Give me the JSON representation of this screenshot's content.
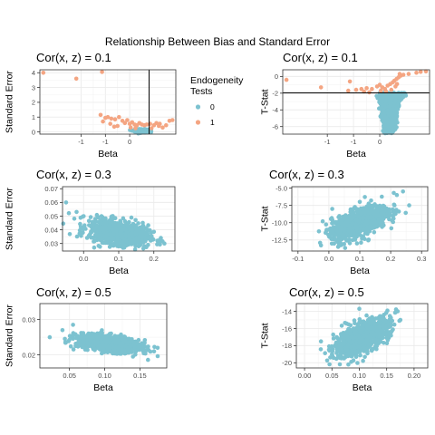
{
  "figure": {
    "title": "Relationship Between Bias and Standard Error"
  },
  "legend": {
    "title_line1": "Endogeneity",
    "title_line2": "Tests",
    "entries": [
      {
        "label": "0",
        "color": "#7cc2d0"
      },
      {
        "label": "1",
        "color": "#f4a582"
      }
    ]
  },
  "colors": {
    "group0": "#7cc2d0",
    "group1": "#f4a582",
    "grid": "#ebebeb",
    "panel_border": "#333333"
  },
  "chart_data": [
    {
      "type": "scatter",
      "title": "Cor(x, z) = 0.1",
      "xlabel": "Beta",
      "ylabel": "Standard Error",
      "xlim": [
        -1.85,
        0.95
      ],
      "ylim": [
        -0.15,
        4.2
      ],
      "xticks": [
        -1,
        -0.5,
        0
      ],
      "xtick_labels": [
        "-1",
        "-0.5",
        "0"
      ],
      "xticks_shown": [
        -1,
        -0.5,
        0
      ],
      "xtick_text": [
        "-1",
        "-1",
        "0"
      ],
      "yticks": [
        0,
        1,
        2,
        3,
        4
      ],
      "ytick_labels": [
        "0",
        "1",
        "2",
        "3",
        "4"
      ],
      "vline": 0.4,
      "grid": true,
      "series": [
        {
          "name": "0",
          "cloud": {
            "cx": 0.25,
            "cy": 0.07,
            "sx": 0.07,
            "sy": 0.05,
            "n": 300,
            "corr": 0
          }
        },
        {
          "name": "1",
          "points": [
            [
              -1.78,
              4.0
            ],
            [
              -1.1,
              3.6
            ],
            [
              -0.57,
              4.05
            ],
            [
              -0.6,
              1.15
            ],
            [
              -0.5,
              0.95
            ],
            [
              -0.45,
              1.0
            ],
            [
              -0.38,
              0.9
            ],
            [
              -0.3,
              0.85
            ],
            [
              -0.22,
              1.0
            ],
            [
              -0.15,
              0.75
            ],
            [
              -0.1,
              0.6
            ],
            [
              -0.05,
              0.8
            ],
            [
              0.0,
              0.55
            ],
            [
              0.05,
              0.65
            ],
            [
              0.1,
              0.5
            ],
            [
              0.15,
              0.45
            ],
            [
              0.2,
              0.6
            ],
            [
              0.25,
              0.5
            ],
            [
              0.3,
              0.45
            ],
            [
              0.35,
              0.5
            ],
            [
              0.42,
              0.55
            ],
            [
              0.5,
              0.45
            ],
            [
              0.55,
              0.6
            ],
            [
              0.6,
              0.4
            ],
            [
              0.68,
              0.3
            ],
            [
              0.75,
              0.45
            ],
            [
              0.82,
              0.75
            ],
            [
              0.88,
              0.8
            ],
            [
              -0.55,
              0.7
            ],
            [
              -0.4,
              0.55
            ],
            [
              -0.25,
              0.4
            ],
            [
              0.02,
              0.3
            ],
            [
              0.12,
              0.25
            ],
            [
              0.45,
              0.25
            ],
            [
              0.62,
              0.55
            ],
            [
              -0.32,
              0.35
            ]
          ]
        }
      ]
    },
    {
      "type": "scatter",
      "title": "Cor(x, z) = 0.1",
      "xlabel": "Beta",
      "ylabel": "T-Stat",
      "xlim": [
        -1.85,
        0.95
      ],
      "ylim": [
        -6.9,
        0.8
      ],
      "xticks": [
        -1,
        -0.5,
        0
      ],
      "xtick_text": [
        "-1",
        "-1",
        "0"
      ],
      "yticks": [
        0,
        -2,
        -4,
        -6
      ],
      "ytick_labels": [
        "0",
        "-2",
        "-4",
        "-6"
      ],
      "hline": -1.96,
      "grid": true,
      "series": [
        {
          "name": "0",
          "funnel": true
        },
        {
          "name": "1",
          "points": [
            [
              -1.78,
              -0.4
            ],
            [
              -1.12,
              -1.3
            ],
            [
              -0.57,
              -0.6
            ],
            [
              -0.6,
              -1.7
            ],
            [
              -0.45,
              -1.6
            ],
            [
              -0.35,
              -1.5
            ],
            [
              -0.25,
              -1.4
            ],
            [
              -0.15,
              -1.5
            ],
            [
              -0.05,
              -1.2
            ],
            [
              0.0,
              -1.0
            ],
            [
              0.05,
              -1.3
            ],
            [
              0.1,
              -1.5
            ],
            [
              0.15,
              -1.1
            ],
            [
              0.2,
              -0.9
            ],
            [
              0.25,
              -0.7
            ],
            [
              0.28,
              -0.5
            ],
            [
              0.32,
              -0.3
            ],
            [
              0.36,
              -0.1
            ],
            [
              0.38,
              0.3
            ],
            [
              0.4,
              0.1
            ],
            [
              0.45,
              0.2
            ],
            [
              0.55,
              0.3
            ],
            [
              0.7,
              0.45
            ],
            [
              0.78,
              0.55
            ],
            [
              0.88,
              0.6
            ],
            [
              -0.3,
              -1.8
            ],
            [
              -0.2,
              -1.9
            ],
            [
              0.02,
              -1.7
            ],
            [
              0.12,
              -1.8
            ],
            [
              0.22,
              -1.6
            ],
            [
              0.3,
              -1.2
            ],
            [
              0.33,
              -0.9
            ]
          ]
        }
      ]
    },
    {
      "type": "scatter",
      "title": "Cor(x, z) = 0.3",
      "xlabel": "Beta",
      "ylabel": "Standard Error",
      "xlim": [
        -0.06,
        0.26
      ],
      "ylim": [
        0.0245,
        0.0715
      ],
      "xticks": [
        0.0,
        0.1,
        0.2
      ],
      "xtick_labels": [
        "0.0",
        "0.1",
        "0.2"
      ],
      "yticks": [
        0.03,
        0.04,
        0.05,
        0.06,
        0.07
      ],
      "ytick_labels": [
        "0.03",
        "0.04",
        "0.05",
        "0.06",
        "0.07"
      ],
      "grid": true,
      "series": [
        {
          "name": "0",
          "cloud": {
            "cx": 0.1,
            "cy": 0.038,
            "sx": 0.042,
            "sy": 0.0045,
            "n": 900,
            "corr": -0.35
          },
          "extra": [
            [
              -0.05,
              0.06
            ],
            [
              -0.02,
              0.053
            ],
            [
              0.0,
              0.05
            ],
            [
              0.22,
              0.034
            ],
            [
              0.23,
              0.03
            ],
            [
              0.03,
              0.027
            ]
          ]
        }
      ]
    },
    {
      "type": "scatter",
      "title": "Cor(x, z) = 0.3",
      "xlabel": "Beta",
      "ylabel": "T-Stat",
      "xlim": [
        -0.12,
        0.32
      ],
      "ylim": [
        -14.1,
        -4.8
      ],
      "xticks": [
        -0.1,
        0.0,
        0.1,
        0.2,
        0.3
      ],
      "xtick_labels": [
        "-0.1",
        "0.0",
        "0.1",
        "0.2",
        "0.3"
      ],
      "yticks": [
        -5.0,
        -7.5,
        -10.0,
        -12.5
      ],
      "ytick_labels": [
        "-5.0",
        "-7.5",
        "-10.0",
        "-12.5"
      ],
      "grid": true,
      "series": [
        {
          "name": "0",
          "cloud": {
            "cx": 0.1,
            "cy": -10.0,
            "sx": 0.045,
            "sy": 1.2,
            "n": 900,
            "corr": 0.6
          },
          "extra": [
            [
              -0.02,
              -9.8
            ],
            [
              0.0,
              -11.0
            ],
            [
              0.22,
              -6.0
            ],
            [
              0.24,
              -5.5
            ],
            [
              0.21,
              -5.7
            ],
            [
              0.1,
              -7.0
            ],
            [
              0.26,
              -7.5
            ],
            [
              0.03,
              -13.5
            ]
          ]
        }
      ]
    },
    {
      "type": "scatter",
      "title": "Cor(x, z) = 0.5",
      "xlabel": "Beta",
      "ylabel": "Standard Error",
      "xlim": [
        0.008,
        0.188
      ],
      "ylim": [
        0.0163,
        0.0345
      ],
      "xticks": [
        0.05,
        0.1,
        0.15
      ],
      "xtick_labels": [
        "0.05",
        "0.10",
        "0.15"
      ],
      "yticks": [
        0.02,
        0.03
      ],
      "ytick_labels": [
        "0.02",
        "0.03"
      ],
      "grid": true,
      "series": [
        {
          "name": "0",
          "cloud": {
            "cx": 0.105,
            "cy": 0.0232,
            "sx": 0.022,
            "sy": 0.0012,
            "n": 900,
            "corr": -0.45
          },
          "extra": [
            [
              0.022,
              0.025
            ],
            [
              0.04,
              0.027
            ],
            [
              0.055,
              0.0285
            ],
            [
              0.17,
              0.021
            ],
            [
              0.175,
              0.022
            ],
            [
              0.14,
              0.0195
            ]
          ]
        }
      ]
    },
    {
      "type": "scatter",
      "title": "Cor(x, z) = 0.5",
      "xlabel": "Beta",
      "ylabel": "T-Stat",
      "xlim": [
        -0.015,
        0.225
      ],
      "ylim": [
        -20.6,
        -13.1
      ],
      "xticks": [
        0.0,
        0.05,
        0.1,
        0.15,
        0.2
      ],
      "xtick_labels": [
        "0.00",
        "0.05",
        "0.10",
        "0.15",
        "0.20"
      ],
      "yticks": [
        -14,
        -16,
        -18,
        -20
      ],
      "ytick_labels": [
        "-14",
        "-16",
        "-18",
        "-20"
      ],
      "grid": true,
      "series": [
        {
          "name": "0",
          "cloud": {
            "cx": 0.105,
            "cy": -17.0,
            "sx": 0.025,
            "sy": 1.1,
            "n": 900,
            "corr": 0.65
          },
          "extra": [
            [
              0.03,
              -17.5
            ],
            [
              0.05,
              -19.0
            ],
            [
              0.17,
              -14.0
            ],
            [
              0.175,
              -15.0
            ],
            [
              0.1,
              -13.7
            ],
            [
              0.08,
              -20.2
            ]
          ]
        }
      ]
    }
  ]
}
